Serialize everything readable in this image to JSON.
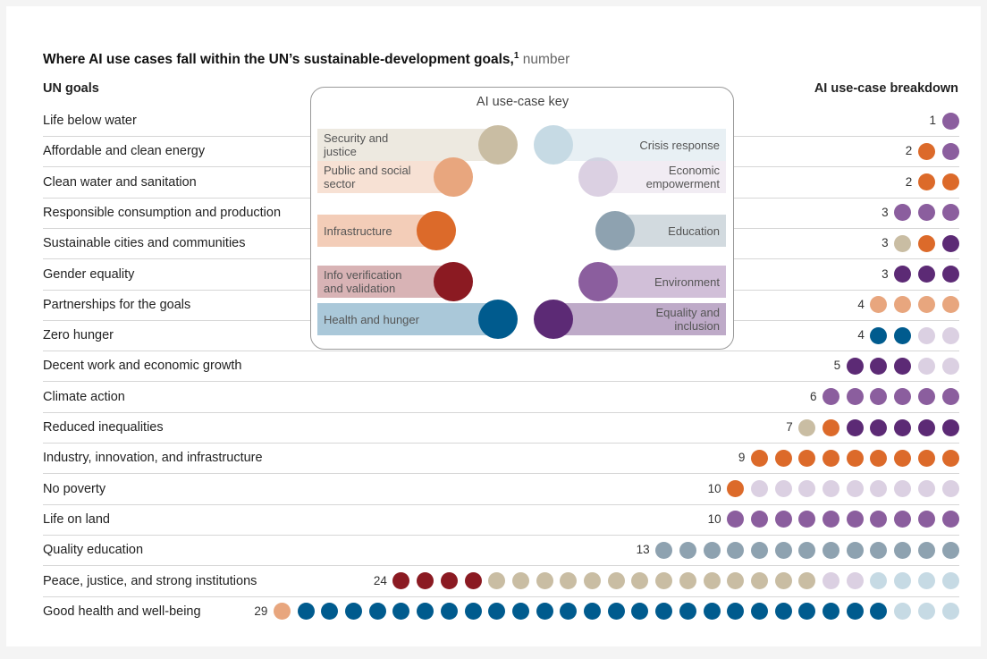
{
  "chart_data": {
    "type": "dot",
    "title": "Where AI use cases fall within the UN’s sustainable-development goals,",
    "footnote_marker": "1",
    "unit": "number",
    "row_header": "UN goals",
    "breakdown_header": "AI use-case breakdown",
    "key_title": "AI use-case key",
    "categories": [
      "Life below water",
      "Affordable and clean energy",
      "Clean water and sanitation",
      "Responsible consumption and production",
      "Sustainable cities and communities",
      "Gender equality",
      "Partnerships for the goals",
      "Zero hunger",
      "Decent work and economic growth",
      "Climate action",
      "Reduced inequalities",
      "Industry, innovation, and infrastructure",
      "No poverty",
      "Life on land",
      "Quality education",
      "Peace, justice, and strong institutions",
      "Good health and well-being"
    ],
    "totals": [
      1,
      2,
      2,
      3,
      3,
      3,
      4,
      4,
      5,
      6,
      7,
      9,
      10,
      10,
      13,
      24,
      29
    ],
    "series": [
      {
        "name": "Info verification and validation",
        "color": "#8b1a22",
        "values": [
          0,
          0,
          0,
          0,
          0,
          0,
          0,
          0,
          0,
          0,
          0,
          0,
          0,
          0,
          0,
          4,
          0
        ]
      },
      {
        "name": "Security and justice",
        "color": "#c9bda3",
        "values": [
          0,
          0,
          0,
          0,
          1,
          0,
          0,
          0,
          0,
          0,
          1,
          0,
          0,
          0,
          0,
          14,
          0
        ]
      },
      {
        "name": "Public and social sector",
        "color": "#e8a67e",
        "values": [
          0,
          0,
          0,
          0,
          0,
          0,
          4,
          0,
          0,
          0,
          0,
          0,
          0,
          0,
          0,
          0,
          1
        ]
      },
      {
        "name": "Infrastructure",
        "color": "#dc6a2a",
        "values": [
          0,
          1,
          2,
          0,
          1,
          0,
          0,
          0,
          0,
          0,
          1,
          9,
          1,
          0,
          0,
          0,
          0
        ]
      },
      {
        "name": "Health and hunger",
        "color": "#005b8e",
        "values": [
          0,
          0,
          0,
          0,
          0,
          0,
          0,
          2,
          0,
          0,
          0,
          0,
          0,
          0,
          0,
          0,
          25
        ]
      },
      {
        "name": "Equality and inclusion",
        "color": "#5c2a75",
        "values": [
          0,
          0,
          0,
          0,
          1,
          3,
          0,
          0,
          3,
          0,
          5,
          0,
          0,
          0,
          0,
          0,
          0
        ]
      },
      {
        "name": "Environment",
        "color": "#8b5e9e",
        "values": [
          1,
          1,
          0,
          3,
          0,
          0,
          0,
          0,
          0,
          6,
          0,
          0,
          0,
          10,
          0,
          0,
          0
        ]
      },
      {
        "name": "Education",
        "color": "#8ea2b0",
        "values": [
          0,
          0,
          0,
          0,
          0,
          0,
          0,
          0,
          0,
          0,
          0,
          0,
          0,
          0,
          13,
          0,
          0
        ]
      },
      {
        "name": "Economic empowerment",
        "color": "#dbd0e2",
        "values": [
          0,
          0,
          0,
          0,
          0,
          0,
          0,
          2,
          2,
          0,
          0,
          0,
          9,
          0,
          0,
          2,
          0
        ]
      },
      {
        "name": "Crisis response",
        "color": "#c6dae4",
        "values": [
          0,
          0,
          0,
          0,
          0,
          0,
          0,
          0,
          0,
          0,
          0,
          0,
          0,
          0,
          0,
          4,
          3
        ]
      }
    ]
  }
}
